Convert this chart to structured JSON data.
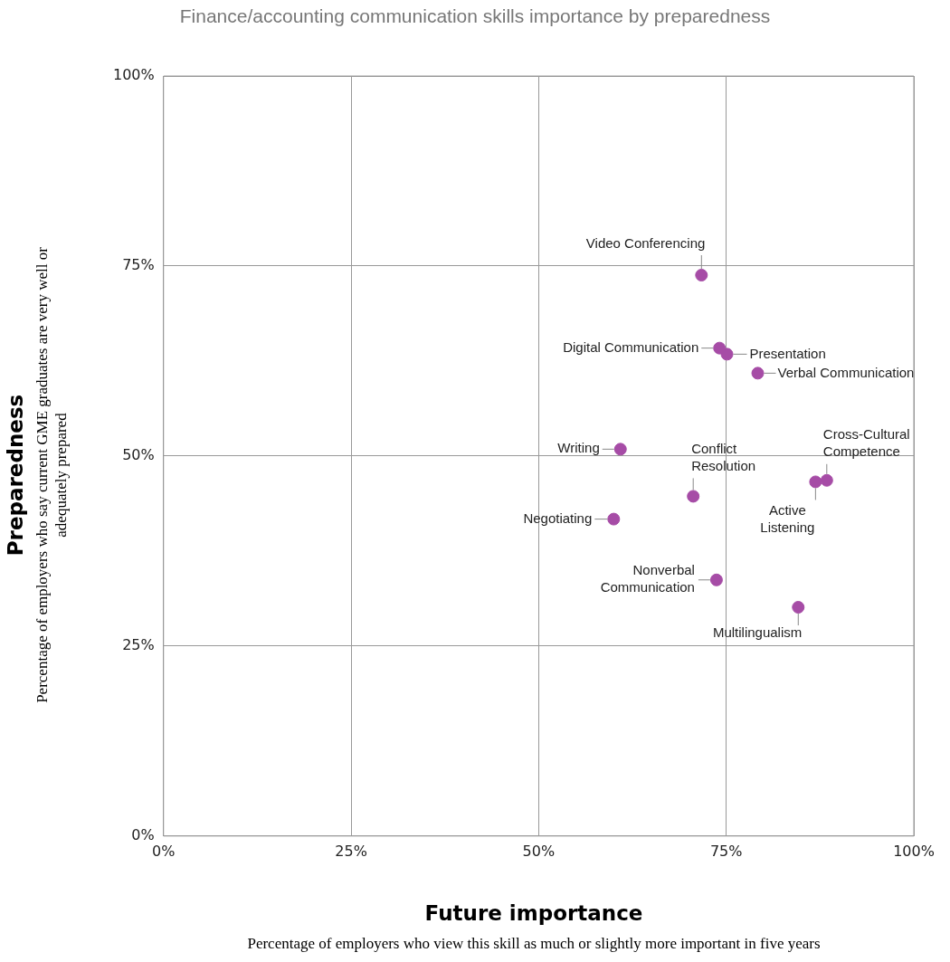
{
  "chart_data": {
    "type": "scatter",
    "title": "Finance/accounting communication skills importance by preparedness",
    "xlabel": "Future importance\nPercentage of employers who view this skill as much or slightly more important in five years",
    "ylabel": "Preparedness\nPercentage of employers who say current GME graduates are very well or adequately prepared",
    "xlim": [
      0,
      100
    ],
    "ylim": [
      0,
      100
    ],
    "xticks": [
      {
        "value": 0,
        "label": "0%"
      },
      {
        "value": 25,
        "label": "25%"
      },
      {
        "value": 50,
        "label": "50%"
      },
      {
        "value": 75,
        "label": "75%"
      },
      {
        "value": 100,
        "label": "100%"
      }
    ],
    "yticks": [
      {
        "value": 0,
        "label": "0%"
      },
      {
        "value": 25,
        "label": "25%"
      },
      {
        "value": 50,
        "label": "50%"
      },
      {
        "value": 75,
        "label": "75%"
      },
      {
        "value": 100,
        "label": "100%"
      }
    ],
    "grid": true,
    "marker": "circle",
    "series": [
      {
        "name": "Video Conferencing",
        "color": "#a64ca6",
        "x": [
          71.7
        ],
        "values": [
          73.8
        ]
      },
      {
        "name": "Digital Communication",
        "color": "#a64ca6",
        "x": [
          74.1
        ],
        "values": [
          64.2
        ]
      },
      {
        "name": "Presentation",
        "color": "#a64ca6",
        "x": [
          75.1
        ],
        "values": [
          63.4
        ]
      },
      {
        "name": "Verbal Communication",
        "color": "#a64ca6",
        "x": [
          79.2
        ],
        "values": [
          60.9
        ]
      },
      {
        "name": "Writing",
        "color": "#a64ca6",
        "x": [
          60.9
        ],
        "values": [
          50.9
        ]
      },
      {
        "name": "Conflict Resolution",
        "color": "#a64ca6",
        "x": [
          70.6
        ],
        "values": [
          44.7
        ]
      },
      {
        "name": "Negotiating",
        "color": "#a64ca6",
        "x": [
          60.0
        ],
        "values": [
          41.7
        ]
      },
      {
        "name": "Cross-Cultural Competence",
        "color": "#a64ca6",
        "x": [
          88.4
        ],
        "values": [
          46.8
        ]
      },
      {
        "name": "Active Listening",
        "color": "#a64ca6",
        "x": [
          86.9
        ],
        "values": [
          46.6
        ]
      },
      {
        "name": "Nonverbal Communication",
        "color": "#a64ca6",
        "x": [
          73.7
        ],
        "values": [
          33.7
        ]
      },
      {
        "name": "Multilingualism",
        "color": "#a64ca6",
        "x": [
          84.6
        ],
        "values": [
          30.1
        ]
      }
    ]
  }
}
